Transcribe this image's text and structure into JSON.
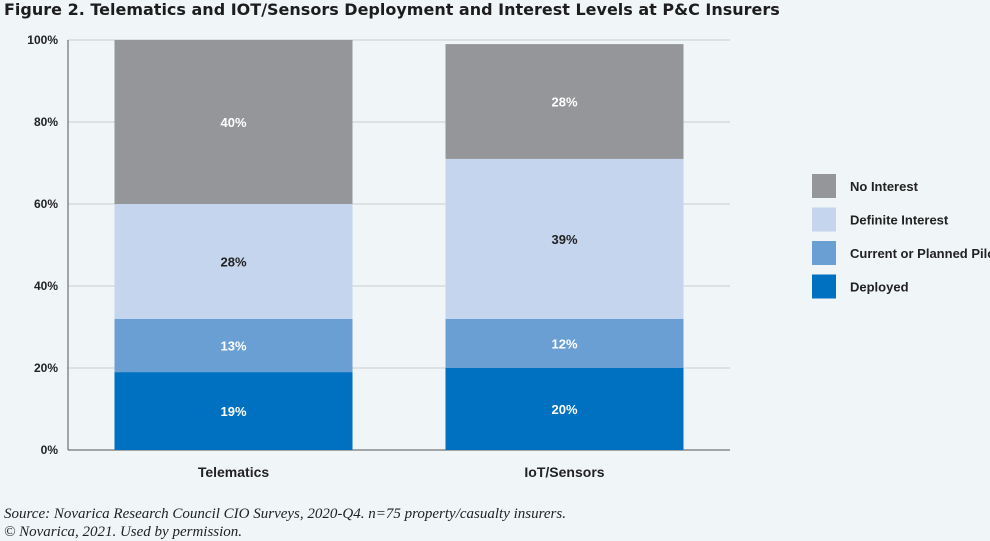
{
  "title": "Figure 2. Telematics and IOT/Sensors Deployment and Interest Levels at P&C Insurers",
  "source_lines": [
    "Source: Novarica Research Council CIO Surveys, 2020-Q4. n=75 property/casualty insurers.",
    "© Novarica, 2021. Used by permission."
  ],
  "chart_data": {
    "type": "bar",
    "stacked": true,
    "categories": [
      "Telematics",
      "IoT/Sensors"
    ],
    "series": [
      {
        "name": "Deployed",
        "values": [
          19,
          20
        ],
        "labels": [
          "19%",
          "20%"
        ],
        "color": "#0070c0"
      },
      {
        "name": "Current or Planned Pilot",
        "values": [
          13,
          12
        ],
        "labels": [
          "13%",
          "12%"
        ],
        "color": "#6a9fd4"
      },
      {
        "name": "Definite Interest",
        "values": [
          28,
          39
        ],
        "labels": [
          "28%",
          "39%"
        ],
        "color": "#c5d5ee"
      },
      {
        "name": "No Interest",
        "values": [
          40,
          28
        ],
        "labels": [
          "40%",
          "28%"
        ],
        "color": "#95969a"
      }
    ],
    "yticks": [
      0,
      20,
      40,
      60,
      80,
      100
    ],
    "ytick_labels": [
      "0%",
      "20%",
      "40%",
      "60%",
      "80%",
      "100%"
    ],
    "ylim": [
      0,
      100
    ],
    "grid": true,
    "legend": {
      "placement": "right",
      "order": [
        "No Interest",
        "Definite Interest",
        "Current or Planned Pilot",
        "Deployed"
      ]
    }
  }
}
